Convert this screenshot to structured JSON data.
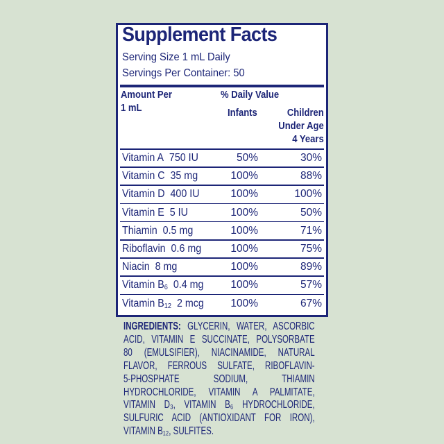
{
  "label": {
    "title": "Supplement Facts",
    "serving_size": "Serving Size 1 mL Daily",
    "servings_per_container": "Servings Per Container: 50",
    "header": {
      "amount_per_line1": "Amount Per",
      "amount_per_line2": "1 mL",
      "daily_value": "% Daily Value",
      "infants": "Infants",
      "children_line1": "Children",
      "children_line2": "Under Age",
      "children_line3": "4 Years"
    },
    "rows": [
      {
        "name": "Vitamin A",
        "sub": "",
        "amount": "750 IU",
        "infants": "50%",
        "children": "30%"
      },
      {
        "name": "Vitamin C",
        "sub": "",
        "amount": "35 mg",
        "infants": "100%",
        "children": "88%"
      },
      {
        "name": "Vitamin D",
        "sub": "",
        "amount": "400 IU",
        "infants": "100%",
        "children": "100%"
      },
      {
        "name": "Vitamin E",
        "sub": "",
        "amount": "5 IU",
        "infants": "100%",
        "children": "50%"
      },
      {
        "name": "Thiamin",
        "sub": "",
        "amount": "0.5 mg",
        "infants": "100%",
        "children": "71%"
      },
      {
        "name": "Riboflavin",
        "sub": "",
        "amount": "0.6 mg",
        "infants": "100%",
        "children": "75%"
      },
      {
        "name": "Niacin",
        "sub": "",
        "amount": "8 mg",
        "infants": "100%",
        "children": "89%"
      },
      {
        "name": "Vitamin B",
        "sub": "6",
        "amount": "0.4 mg",
        "infants": "100%",
        "children": "57%"
      },
      {
        "name": "Vitamin B",
        "sub": "12",
        "amount": "2 mcg",
        "infants": "100%",
        "children": "67%"
      }
    ]
  },
  "ingredients": {
    "heading": "INGREDIENTS:",
    "lines": [
      " GLYCERIN, WATER, ASCORBIC",
      "ACID, VITAMIN E SUCCINATE, POLYSORBATE",
      "80 (EMULSIFIER), NIACINAMIDE, NATURAL",
      "FLAVOR, FERROUS SULFATE, RIBOFLAVIN-",
      "5-PHOSPHATE SODIUM, THIAMIN",
      "HYDROCHLORIDE, VITAMIN A PALMITATE,",
      "VITAMIN D₃, VITAMIN B₆ HYDROCHLORIDE,",
      "SULFURIC ACID (ANTIOXIDANT FOR IRON),",
      "VITAMIN B₁₂, SULFITES."
    ]
  },
  "colors": {
    "background": "#d7e2d2",
    "ink": "#1c2577",
    "panel": "#ffffff"
  }
}
